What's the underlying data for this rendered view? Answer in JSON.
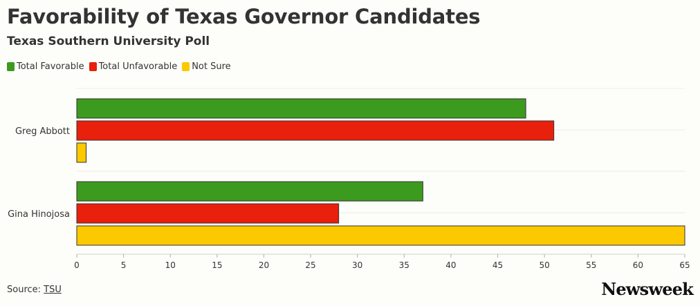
{
  "chart_data": {
    "type": "bar",
    "orientation": "horizontal",
    "title": "Favorability of Texas Governor Candidates",
    "subtitle": "Texas Southern University Poll",
    "categories": [
      "Greg Abbott",
      "Gina Hinojosa"
    ],
    "series": [
      {
        "name": "Total Favorable",
        "color": "#3c9a1f",
        "values": [
          48,
          37
        ]
      },
      {
        "name": "Total Unfavorable",
        "color": "#e8200c",
        "values": [
          51,
          28
        ]
      },
      {
        "name": "Not Sure",
        "color": "#fcc800",
        "values": [
          1,
          65
        ]
      }
    ],
    "xlim": [
      0,
      65
    ],
    "xticks": [
      0,
      5,
      10,
      15,
      20,
      25,
      30,
      35,
      40,
      45,
      50,
      55,
      60,
      65
    ],
    "grid": true,
    "legend": "top-left"
  },
  "footer": {
    "source_label": "Source:",
    "source_link": "TSU",
    "brand": "Newsweek"
  }
}
